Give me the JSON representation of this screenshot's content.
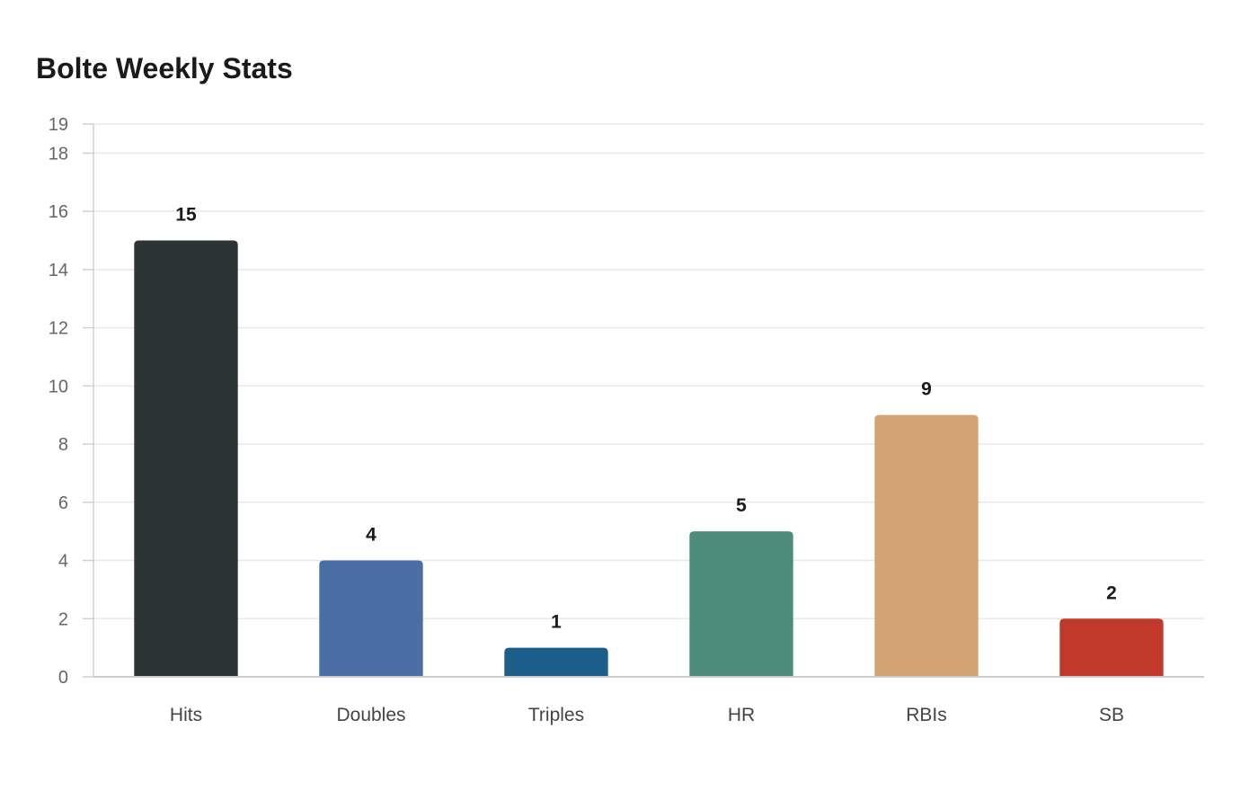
{
  "chart_data": {
    "type": "bar",
    "title": "Bolte Weekly Stats",
    "xlabel": "",
    "ylabel": "",
    "categories": [
      "Hits",
      "Doubles",
      "Triples",
      "HR",
      "RBIs",
      "SB"
    ],
    "values": [
      15,
      4,
      1,
      5,
      9,
      2
    ],
    "colors": [
      "#2d3436",
      "#4a6fa5",
      "#1b5e8a",
      "#4e8c7a",
      "#d4a373",
      "#c0392b"
    ],
    "ylim": [
      0,
      19
    ],
    "yticks": [
      0,
      2,
      4,
      6,
      8,
      10,
      12,
      14,
      16,
      18,
      19
    ],
    "ytick_labels": [
      "0",
      "2",
      "4",
      "6",
      "8",
      "10",
      "12",
      "14",
      "16",
      "18",
      "19"
    ],
    "grid": true,
    "legend": "none"
  }
}
